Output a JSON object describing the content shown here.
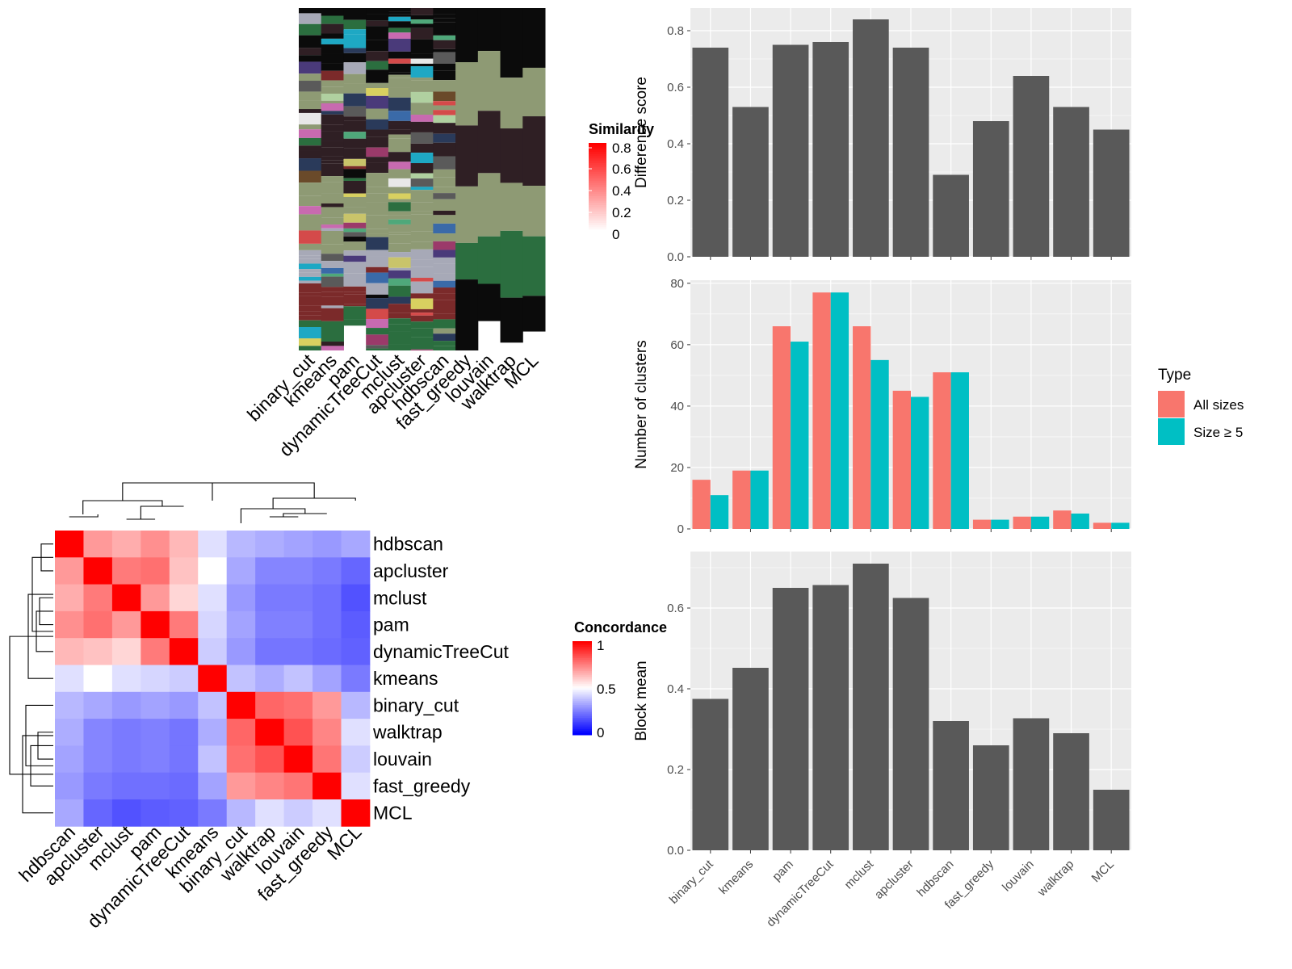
{
  "colors": {
    "panel_bg": "#ebebeb",
    "grid": "#ffffff",
    "bar": "#595959",
    "all_sizes": "#F8766D",
    "size_ge5": "#00BFC4",
    "heat_high": "#ff0000",
    "heat_mid": "#ffffff",
    "heat_low": "#0000ff"
  },
  "methods": [
    "binary_cut",
    "kmeans",
    "pam",
    "dynamicTreeCut",
    "mclust",
    "apcluster",
    "hdbscan",
    "fast_greedy",
    "louvain",
    "walktrap",
    "MCL"
  ],
  "similarity_legend": {
    "title": "Similarity",
    "ticks": [
      "0.8",
      "0.6",
      "0.4",
      "0.2",
      "0"
    ]
  },
  "concordance_legend": {
    "title": "Concordance",
    "ticks": [
      "1",
      "0.5",
      "0"
    ]
  },
  "chart_data": [
    {
      "type": "bar",
      "id": "difference-score",
      "categories": [
        "binary_cut",
        "kmeans",
        "pam",
        "dynamicTreeCut",
        "mclust",
        "apcluster",
        "hdbscan",
        "fast_greedy",
        "louvain",
        "walktrap",
        "MCL"
      ],
      "values": [
        0.74,
        0.53,
        0.75,
        0.76,
        0.84,
        0.74,
        0.29,
        0.48,
        0.64,
        0.53,
        0.45
      ],
      "ylabel": "Difference score",
      "ylim": [
        0,
        0.88
      ],
      "yticks": [
        "0.0",
        "0.2",
        "0.4",
        "0.6",
        "0.8"
      ]
    },
    {
      "type": "bar",
      "id": "number-of-clusters",
      "categories": [
        "binary_cut",
        "kmeans",
        "pam",
        "dynamicTreeCut",
        "mclust",
        "apcluster",
        "hdbscan",
        "fast_greedy",
        "louvain",
        "walktrap",
        "MCL"
      ],
      "series": [
        {
          "name": "All sizes",
          "values": [
            16,
            19,
            66,
            77,
            66,
            45,
            51,
            3,
            4,
            6,
            2
          ]
        },
        {
          "name": "Size ≥ 5",
          "values": [
            11,
            19,
            61,
            77,
            55,
            43,
            51,
            3,
            4,
            5,
            2
          ]
        }
      ],
      "legend_title": "Type",
      "ylabel": "Number of clusters",
      "ylim": [
        0,
        81
      ],
      "yticks": [
        "0",
        "20",
        "40",
        "60",
        "80"
      ]
    },
    {
      "type": "bar",
      "id": "block-mean",
      "categories": [
        "binary_cut",
        "kmeans",
        "pam",
        "dynamicTreeCut",
        "mclust",
        "apcluster",
        "hdbscan",
        "fast_greedy",
        "louvain",
        "walktrap",
        "MCL"
      ],
      "values": [
        0.375,
        0.452,
        0.65,
        0.657,
        0.71,
        0.625,
        0.32,
        0.26,
        0.327,
        0.29,
        0.15
      ],
      "ylabel": "Block mean",
      "ylim": [
        0,
        0.74
      ],
      "yticks": [
        "0.0",
        "0.2",
        "0.4",
        "0.6"
      ]
    },
    {
      "type": "heatmap",
      "id": "concordance-heatmap",
      "rows": [
        "hdbscan",
        "apcluster",
        "mclust",
        "pam",
        "dynamicTreeCut",
        "kmeans",
        "binary_cut",
        "walktrap",
        "louvain",
        "fast_greedy",
        "MCL"
      ],
      "cols": [
        "hdbscan",
        "apcluster",
        "mclust",
        "pam",
        "dynamicTreeCut",
        "kmeans",
        "binary_cut",
        "walktrap",
        "louvain",
        "fast_greedy",
        "MCL"
      ],
      "values": [
        [
          1.0,
          0.7,
          0.66,
          0.72,
          0.64,
          0.44,
          0.36,
          0.34,
          0.32,
          0.3,
          0.33
        ],
        [
          0.7,
          1.0,
          0.76,
          0.78,
          0.62,
          0.5,
          0.33,
          0.26,
          0.26,
          0.24,
          0.2
        ],
        [
          0.66,
          0.76,
          1.0,
          0.7,
          0.58,
          0.44,
          0.3,
          0.24,
          0.24,
          0.22,
          0.16
        ],
        [
          0.72,
          0.78,
          0.7,
          1.0,
          0.76,
          0.42,
          0.32,
          0.25,
          0.25,
          0.22,
          0.18
        ],
        [
          0.64,
          0.62,
          0.58,
          0.76,
          1.0,
          0.4,
          0.3,
          0.23,
          0.23,
          0.21,
          0.19
        ],
        [
          0.44,
          0.5,
          0.44,
          0.42,
          0.4,
          1.0,
          0.38,
          0.34,
          0.38,
          0.32,
          0.24
        ],
        [
          0.36,
          0.33,
          0.3,
          0.32,
          0.3,
          0.38,
          1.0,
          0.8,
          0.78,
          0.7,
          0.36
        ],
        [
          0.34,
          0.26,
          0.24,
          0.25,
          0.23,
          0.34,
          0.8,
          1.0,
          0.84,
          0.74,
          0.44
        ],
        [
          0.32,
          0.26,
          0.24,
          0.25,
          0.23,
          0.38,
          0.78,
          0.84,
          1.0,
          0.77,
          0.4
        ],
        [
          0.3,
          0.24,
          0.22,
          0.22,
          0.21,
          0.32,
          0.7,
          0.74,
          0.77,
          1.0,
          0.44
        ],
        [
          0.33,
          0.2,
          0.16,
          0.18,
          0.19,
          0.24,
          0.36,
          0.44,
          0.4,
          0.44,
          1.0
        ]
      ]
    }
  ]
}
